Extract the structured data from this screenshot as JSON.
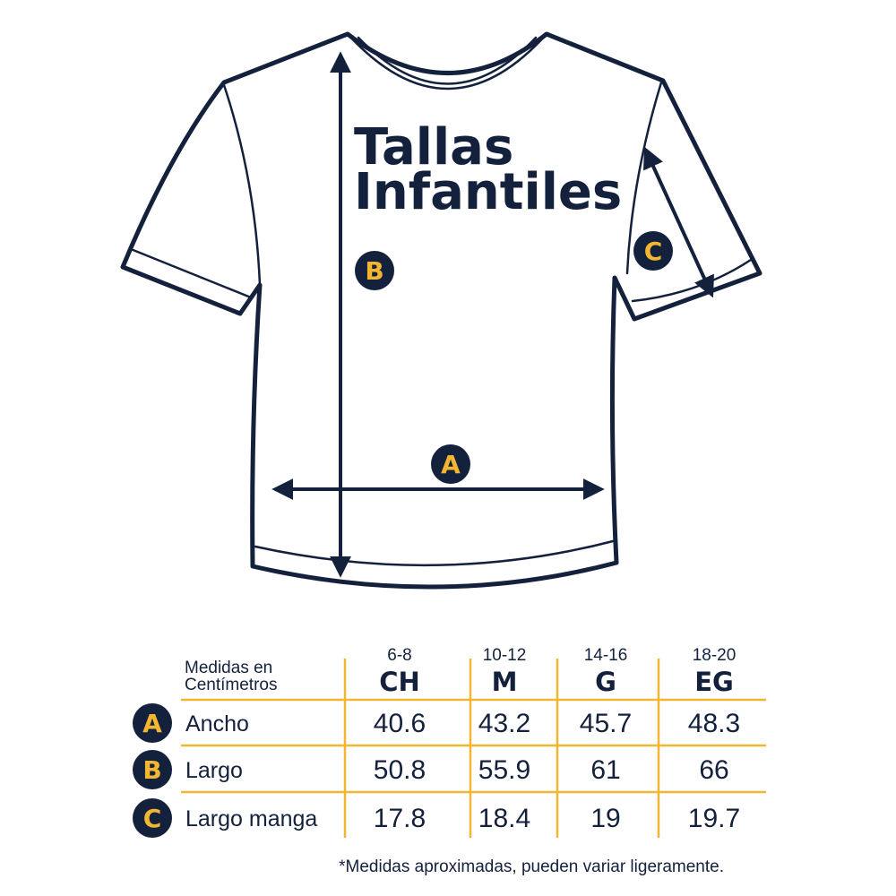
{
  "title": {
    "line1": "Tallas",
    "line2": "Infantiles"
  },
  "markers": {
    "A": "A",
    "B": "B",
    "C": "C"
  },
  "table": {
    "corner_label": {
      "line1": "Medidas en",
      "line2": "Centímetros"
    },
    "columns": [
      {
        "range": "6-8",
        "size": "CH"
      },
      {
        "range": "10-12",
        "size": "M"
      },
      {
        "range": "14-16",
        "size": "G"
      },
      {
        "range": "18-20",
        "size": "EG"
      }
    ],
    "rows": [
      {
        "marker": "A",
        "label": "Ancho",
        "values": [
          "40.6",
          "43.2",
          "45.7",
          "48.3"
        ]
      },
      {
        "marker": "B",
        "label": "Largo",
        "values": [
          "50.8",
          "55.9",
          "61",
          "66"
        ]
      },
      {
        "marker": "C",
        "label": "Largo manga",
        "values": [
          "17.8",
          "18.4",
          "19",
          "19.7"
        ]
      }
    ]
  },
  "footnote": "*Medidas aproximadas, pueden variar ligeramente.",
  "colors": {
    "navy": "#14213d",
    "yellow": "#f2b630"
  }
}
